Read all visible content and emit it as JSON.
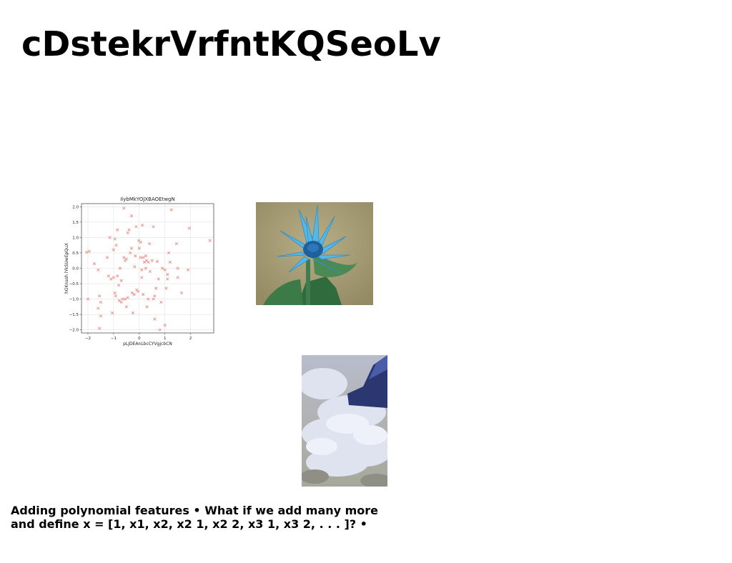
{
  "slide": {
    "title": "cDstekrVrfntKQSeoLv",
    "caption_line1": "Adding polynomial features • What if we add many more",
    "caption_line2": "and define x = [1, x1, x2, x2 1, x2 2, x3 1, x3 2, . . . ]? •"
  },
  "images": {
    "flower": "flower-photo",
    "clouds": "airplane-wing-over-clouds-photo"
  },
  "chart_data": {
    "type": "scatter",
    "title": "IiybMkYOJXBAOEtwgN",
    "xlabel": "pLJDEAnLbcCYVgjcbCN",
    "ylabel": "hGKnash lYkSUwEpQuX",
    "xlim": [
      -2.25,
      2.9
    ],
    "ylim": [
      -2.1,
      2.1
    ],
    "xticks": [
      -2,
      -1,
      0,
      1,
      2
    ],
    "yticks": [
      -2.0,
      -1.5,
      -1.0,
      -0.5,
      0.0,
      0.5,
      1.0,
      1.5,
      2.0
    ],
    "grid": true,
    "marker": "x",
    "color": "#e8837a",
    "points": [
      [
        -2.05,
        0.52
      ],
      [
        -1.95,
        0.55
      ],
      [
        -2.0,
        -1.0
      ],
      [
        -1.75,
        0.15
      ],
      [
        -1.6,
        -0.05
      ],
      [
        -1.55,
        -0.9
      ],
      [
        -1.6,
        -1.3
      ],
      [
        -1.5,
        -1.55
      ],
      [
        -1.55,
        -1.95
      ],
      [
        -1.5,
        -1.1
      ],
      [
        -1.25,
        0.35
      ],
      [
        -1.2,
        -0.25
      ],
      [
        -1.15,
        1.0
      ],
      [
        -1.1,
        -0.35
      ],
      [
        -1.05,
        -1.45
      ],
      [
        -1.0,
        0.6
      ],
      [
        -1.0,
        -0.3
      ],
      [
        -0.95,
        0.95
      ],
      [
        -0.95,
        -0.8
      ],
      [
        -0.92,
        -0.9
      ],
      [
        -0.9,
        0.75
      ],
      [
        -0.85,
        1.25
      ],
      [
        -0.85,
        -0.25
      ],
      [
        -0.8,
        -0.55
      ],
      [
        -0.78,
        -1.05
      ],
      [
        -0.75,
        0.0
      ],
      [
        -0.7,
        -0.4
      ],
      [
        -0.7,
        -1.1
      ],
      [
        -0.65,
        -1.0
      ],
      [
        -0.6,
        1.95
      ],
      [
        -0.6,
        0.35
      ],
      [
        -0.55,
        0.25
      ],
      [
        -0.55,
        -1.0
      ],
      [
        -0.5,
        0.3
      ],
      [
        -0.5,
        -1.25
      ],
      [
        -0.45,
        1.15
      ],
      [
        -0.45,
        -0.95
      ],
      [
        -0.4,
        1.25
      ],
      [
        -0.35,
        0.5
      ],
      [
        -0.3,
        1.7
      ],
      [
        -0.3,
        0.65
      ],
      [
        -0.28,
        -0.8
      ],
      [
        -0.25,
        -1.45
      ],
      [
        -0.2,
        -0.85
      ],
      [
        -0.18,
        0.05
      ],
      [
        -0.15,
        0.4
      ],
      [
        -0.12,
        1.35
      ],
      [
        -0.1,
        -0.7
      ],
      [
        -0.05,
        -0.75
      ],
      [
        -0.02,
        0.9
      ],
      [
        0.0,
        0.65
      ],
      [
        0.05,
        0.85
      ],
      [
        0.05,
        0.35
      ],
      [
        0.1,
        -0.05
      ],
      [
        0.1,
        -0.3
      ],
      [
        0.12,
        1.4
      ],
      [
        0.15,
        0.35
      ],
      [
        0.15,
        -0.85
      ],
      [
        0.2,
        0.2
      ],
      [
        0.25,
        0.4
      ],
      [
        0.25,
        -0.0
      ],
      [
        0.28,
        0.25
      ],
      [
        0.3,
        -1.25
      ],
      [
        0.35,
        0.2
      ],
      [
        0.35,
        -1.0
      ],
      [
        0.4,
        0.8
      ],
      [
        0.42,
        -0.1
      ],
      [
        0.5,
        0.25
      ],
      [
        0.55,
        1.35
      ],
      [
        0.55,
        -1.0
      ],
      [
        0.6,
        -0.9
      ],
      [
        0.6,
        -1.65
      ],
      [
        0.65,
        -0.65
      ],
      [
        0.7,
        0.22
      ],
      [
        0.75,
        -0.35
      ],
      [
        0.8,
        -2.0
      ],
      [
        0.85,
        -1.1
      ],
      [
        0.9,
        0.0
      ],
      [
        1.0,
        -0.05
      ],
      [
        1.0,
        -1.85
      ],
      [
        1.05,
        -0.65
      ],
      [
        1.1,
        -0.2
      ],
      [
        1.1,
        -0.35
      ],
      [
        1.15,
        0.5
      ],
      [
        1.2,
        0.2
      ],
      [
        1.25,
        1.9
      ],
      [
        1.45,
        0.8
      ],
      [
        1.5,
        0.0
      ],
      [
        1.5,
        -0.3
      ],
      [
        1.65,
        -0.8
      ],
      [
        1.9,
        -0.05
      ],
      [
        1.95,
        1.3
      ],
      [
        2.75,
        0.9
      ]
    ]
  }
}
